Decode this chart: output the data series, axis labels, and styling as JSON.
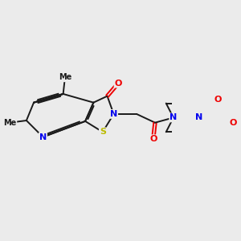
{
  "background_color": "#ebebeb",
  "bond_color": "#1a1a1a",
  "atom_colors": {
    "N": "#0000ee",
    "O": "#ee0000",
    "S": "#bbbb00",
    "C": "#1a1a1a"
  },
  "figsize": [
    3.0,
    3.0
  ],
  "dpi": 100
}
